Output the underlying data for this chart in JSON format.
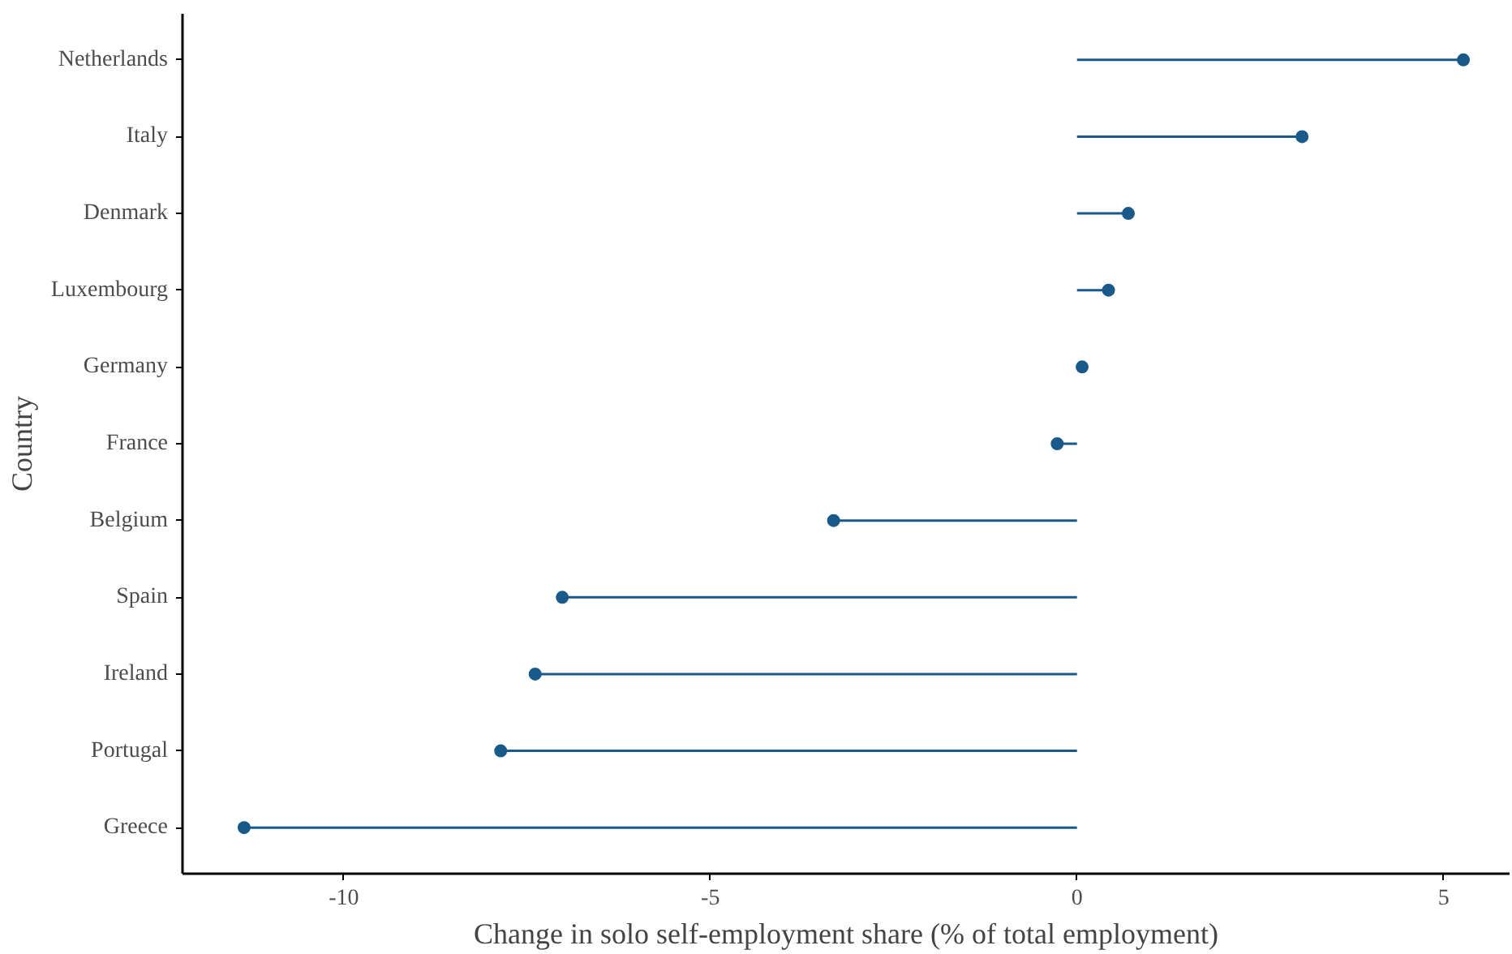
{
  "chart_data": {
    "type": "lollipop",
    "orientation": "horizontal",
    "xlabel": "Change in solo self-employment share (% of total employment)",
    "ylabel": "Country",
    "categories": [
      "Netherlands",
      "Italy",
      "Denmark",
      "Luxembourg",
      "Germany",
      "France",
      "Belgium",
      "Spain",
      "Ireland",
      "Portugal",
      "Greece"
    ],
    "values": [
      5.27,
      3.07,
      0.7,
      0.43,
      0.07,
      -0.27,
      -3.32,
      -7.02,
      -7.39,
      -7.86,
      -11.36
    ],
    "color": "#1a5a8a",
    "marker": "circle",
    "xlim": [
      -12.2,
      5.9
    ],
    "xticks": [
      -10,
      -5,
      0,
      5
    ],
    "grid": false
  }
}
